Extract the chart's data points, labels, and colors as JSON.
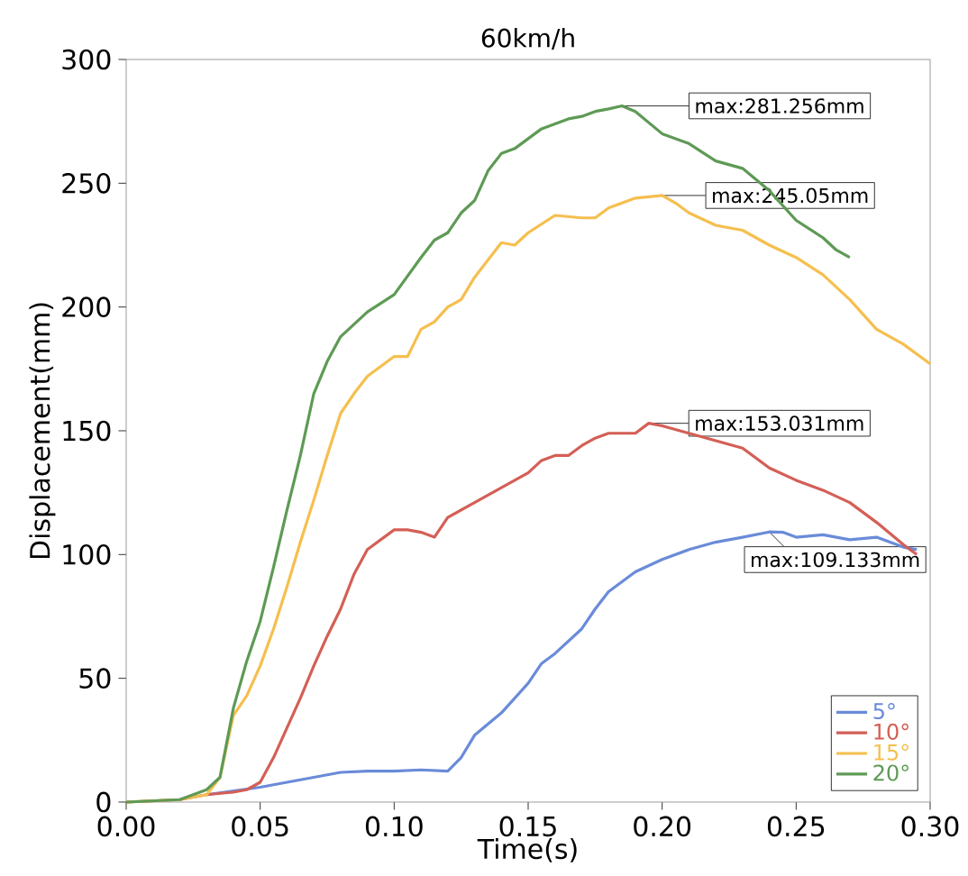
{
  "chart_data": {
    "type": "line",
    "title": "60km/h",
    "xlabel": "Time(s)",
    "ylabel": "Displacement(mm)",
    "xlim": [
      0,
      0.3
    ],
    "xticks": [
      {
        "value": 0,
        "label": "0.00"
      },
      {
        "value": 0.05,
        "label": "0.05"
      },
      {
        "value": 0.1,
        "label": "0.10"
      },
      {
        "value": 0.15,
        "label": "0.15"
      },
      {
        "value": 0.2,
        "label": "0.20"
      },
      {
        "value": 0.25,
        "label": "0.25"
      },
      {
        "value": 0.3,
        "label": "0.30"
      }
    ],
    "ylim": [
      0,
      300
    ],
    "yticks": [
      0,
      50,
      100,
      150,
      200,
      250,
      300
    ],
    "grid": false,
    "legend": "bottom right",
    "line_style": "solid",
    "marker": "none",
    "series": [
      {
        "name": "5°",
        "color": "#6a8bd8",
        "x": [
          0.03,
          0.05,
          0.06,
          0.07,
          0.08,
          0.09,
          0.1,
          0.11,
          0.12,
          0.125,
          0.13,
          0.14,
          0.15,
          0.155,
          0.16,
          0.17,
          0.175,
          0.18,
          0.19,
          0.2,
          0.21,
          0.22,
          0.23,
          0.24,
          0.245,
          0.25,
          0.26,
          0.27,
          0.28,
          0.29,
          0.295
        ],
        "values": [
          3,
          6,
          8,
          10,
          12,
          12.5,
          12.5,
          13,
          12.5,
          18,
          27,
          36,
          48,
          56,
          60,
          70,
          78,
          85,
          93,
          98,
          102,
          105,
          107,
          109.133,
          109,
          107,
          108,
          106,
          107,
          103,
          102
        ]
      },
      {
        "name": "10°",
        "color": "#d45f56",
        "x": [
          0,
          0.02,
          0.03,
          0.04,
          0.045,
          0.05,
          0.055,
          0.06,
          0.065,
          0.07,
          0.075,
          0.08,
          0.085,
          0.09,
          0.1,
          0.105,
          0.11,
          0.115,
          0.12,
          0.13,
          0.14,
          0.15,
          0.155,
          0.16,
          0.165,
          0.17,
          0.175,
          0.18,
          0.19,
          0.195,
          0.2,
          0.21,
          0.22,
          0.23,
          0.24,
          0.25,
          0.26,
          0.27,
          0.28,
          0.29,
          0.295
        ],
        "values": [
          0,
          1,
          3,
          4,
          5,
          8,
          18,
          30,
          42,
          55,
          67,
          78,
          92,
          102,
          110,
          110,
          109,
          107,
          115,
          121,
          127,
          133,
          138,
          140,
          140,
          144,
          147,
          149,
          149,
          153.031,
          152,
          149,
          146,
          143,
          135,
          130,
          126,
          121,
          113,
          104,
          100
        ]
      },
      {
        "name": "15°",
        "color": "#f5bf4f",
        "x": [
          0,
          0.02,
          0.03,
          0.035,
          0.04,
          0.045,
          0.05,
          0.055,
          0.06,
          0.065,
          0.07,
          0.075,
          0.08,
          0.085,
          0.09,
          0.1,
          0.105,
          0.11,
          0.115,
          0.12,
          0.125,
          0.13,
          0.14,
          0.145,
          0.15,
          0.16,
          0.17,
          0.175,
          0.18,
          0.19,
          0.2,
          0.205,
          0.21,
          0.22,
          0.23,
          0.24,
          0.25,
          0.26,
          0.27,
          0.28,
          0.29,
          0.3
        ],
        "values": [
          0,
          1,
          3,
          10,
          35,
          43,
          55,
          70,
          87,
          105,
          122,
          140,
          157,
          165,
          172,
          180,
          180,
          191,
          194,
          200,
          203,
          212,
          226,
          225,
          230,
          237,
          236,
          236,
          240,
          244,
          245.05,
          242,
          238,
          233,
          231,
          225,
          220,
          213,
          203,
          191,
          185,
          177
        ]
      },
      {
        "name": "20°",
        "color": "#5e9a55",
        "x": [
          0,
          0.02,
          0.03,
          0.035,
          0.04,
          0.045,
          0.05,
          0.055,
          0.06,
          0.065,
          0.07,
          0.075,
          0.08,
          0.09,
          0.1,
          0.11,
          0.115,
          0.12,
          0.125,
          0.13,
          0.135,
          0.14,
          0.145,
          0.15,
          0.155,
          0.16,
          0.165,
          0.17,
          0.175,
          0.18,
          0.185,
          0.19,
          0.2,
          0.21,
          0.22,
          0.23,
          0.24,
          0.25,
          0.26,
          0.265,
          0.27
        ],
        "values": [
          0,
          1,
          5,
          10,
          38,
          57,
          73,
          95,
          118,
          140,
          165,
          178,
          188,
          198,
          205,
          220,
          227,
          230,
          238,
          243,
          255,
          262,
          264,
          268,
          272,
          274,
          276,
          277,
          279,
          280,
          281.256,
          279,
          270,
          266,
          259,
          256,
          247,
          235,
          228,
          223,
          220
        ]
      }
    ],
    "annotations": [
      {
        "text": "max:109.133mm",
        "x": 0.24,
        "y": 109.133
      },
      {
        "text": "max:153.031mm",
        "x": 0.195,
        "y": 153.031
      },
      {
        "text": "max:245.05mm",
        "x": 0.2,
        "y": 245.05
      },
      {
        "text": "max:281.256mm",
        "x": 0.185,
        "y": 281.256
      }
    ]
  }
}
